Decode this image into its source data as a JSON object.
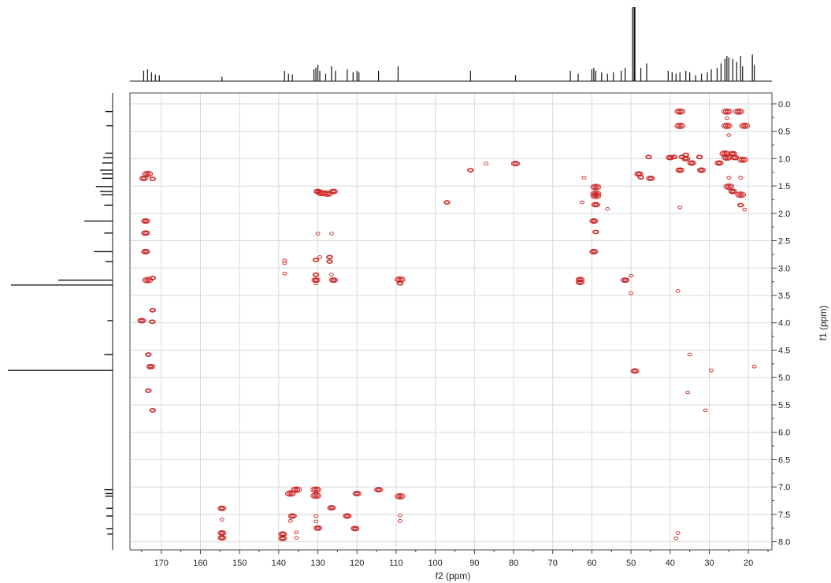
{
  "chart_data": {
    "type": "scatter",
    "subtype": "2d-nmr-contour",
    "title": "",
    "xlabel": "f2 (ppm)",
    "ylabel": "f1 (ppm)",
    "xlim": [
      178,
      14
    ],
    "ylim": [
      -0.2,
      8.15
    ],
    "x_reversed": true,
    "grid": true,
    "x_ticks": [
      170,
      160,
      150,
      140,
      130,
      120,
      110,
      100,
      90,
      80,
      70,
      60,
      50,
      40,
      30,
      20
    ],
    "y_ticks": [
      "0.0",
      "0.5",
      "1.0",
      "1.5",
      "2.0",
      "2.5",
      "3.0",
      "3.5",
      "4.0",
      "4.5",
      "5.0",
      "5.5",
      "6.0",
      "6.5",
      "7.0",
      "7.5",
      "8.0"
    ],
    "colors": {
      "contour": "#cc2222",
      "projection": "#111111",
      "grid": "#d9d9d9",
      "frame": "#444444"
    },
    "series": [
      {
        "values": [
          {
            "x": 173.5,
            "y": 1.28,
            "w": 3
          },
          {
            "x": 174.5,
            "y": 1.36,
            "w": 2
          },
          {
            "x": 172.2,
            "y": 1.37,
            "w": 1
          },
          {
            "x": 174.0,
            "y": 2.14,
            "w": 2
          },
          {
            "x": 174.0,
            "y": 2.36,
            "w": 2
          },
          {
            "x": 174.0,
            "y": 2.7,
            "w": 2
          },
          {
            "x": 173.5,
            "y": 3.22,
            "w": 3
          },
          {
            "x": 172.2,
            "y": 3.18,
            "w": 1
          },
          {
            "x": 172.2,
            "y": 3.77,
            "w": 1
          },
          {
            "x": 175.0,
            "y": 3.96,
            "w": 2
          },
          {
            "x": 172.3,
            "y": 3.98,
            "w": 1
          },
          {
            "x": 173.3,
            "y": 4.58,
            "w": 1
          },
          {
            "x": 172.7,
            "y": 4.8,
            "w": 2
          },
          {
            "x": 173.3,
            "y": 5.24,
            "w": 1
          },
          {
            "x": 172.2,
            "y": 5.6,
            "w": 1
          },
          {
            "x": 154.5,
            "y": 7.39,
            "w": 2
          },
          {
            "x": 154.5,
            "y": 7.84,
            "w": 2
          },
          {
            "x": 154.5,
            "y": 7.93,
            "w": 2
          },
          {
            "x": 154.5,
            "y": 7.6,
            "w": 0
          },
          {
            "x": 138.5,
            "y": 2.86,
            "w": 0
          },
          {
            "x": 138.5,
            "y": 2.91,
            "w": 0
          },
          {
            "x": 138.5,
            "y": 3.1,
            "w": 0
          },
          {
            "x": 130.0,
            "y": 1.6,
            "w": 2
          },
          {
            "x": 129.0,
            "y": 1.63,
            "w": 3
          },
          {
            "x": 127.5,
            "y": 1.64,
            "w": 3
          },
          {
            "x": 126.0,
            "y": 1.6,
            "w": 2
          },
          {
            "x": 130.0,
            "y": 2.37,
            "w": 0
          },
          {
            "x": 126.5,
            "y": 2.37,
            "w": 0
          },
          {
            "x": 130.5,
            "y": 2.85,
            "w": 1
          },
          {
            "x": 129.5,
            "y": 2.8,
            "w": 0
          },
          {
            "x": 127.0,
            "y": 2.8,
            "w": 1
          },
          {
            "x": 127.0,
            "y": 2.88,
            "w": 1
          },
          {
            "x": 130.5,
            "y": 3.12,
            "w": 1
          },
          {
            "x": 130.5,
            "y": 3.22,
            "w": 2
          },
          {
            "x": 130.5,
            "y": 3.28,
            "w": 0
          },
          {
            "x": 126.5,
            "y": 3.12,
            "w": 0
          },
          {
            "x": 126.0,
            "y": 3.22,
            "w": 2
          },
          {
            "x": 109.0,
            "y": 3.21,
            "w": 3
          },
          {
            "x": 109.0,
            "y": 3.28,
            "w": 1
          },
          {
            "x": 137.0,
            "y": 7.12,
            "w": 3
          },
          {
            "x": 135.5,
            "y": 7.05,
            "w": 3
          },
          {
            "x": 130.5,
            "y": 7.05,
            "w": 3
          },
          {
            "x": 130.5,
            "y": 7.16,
            "w": 3
          },
          {
            "x": 120.0,
            "y": 7.12,
            "w": 2
          },
          {
            "x": 114.5,
            "y": 7.05,
            "w": 2
          },
          {
            "x": 109.0,
            "y": 7.17,
            "w": 3
          },
          {
            "x": 136.5,
            "y": 7.53,
            "w": 2
          },
          {
            "x": 130.5,
            "y": 7.53,
            "w": 0
          },
          {
            "x": 130.5,
            "y": 7.63,
            "w": 0
          },
          {
            "x": 126.5,
            "y": 7.38,
            "w": 2
          },
          {
            "x": 122.5,
            "y": 7.53,
            "w": 2
          },
          {
            "x": 120.5,
            "y": 7.76,
            "w": 2
          },
          {
            "x": 130.0,
            "y": 7.75,
            "w": 2
          },
          {
            "x": 109.0,
            "y": 7.52,
            "w": 0
          },
          {
            "x": 109.0,
            "y": 7.62,
            "w": 0
          },
          {
            "x": 139.0,
            "y": 7.86,
            "w": 2
          },
          {
            "x": 139.0,
            "y": 7.94,
            "w": 2
          },
          {
            "x": 137.0,
            "y": 7.62,
            "w": 0
          },
          {
            "x": 135.5,
            "y": 7.83,
            "w": 0
          },
          {
            "x": 135.5,
            "y": 7.93,
            "w": 0
          },
          {
            "x": 91.0,
            "y": 1.21,
            "w": 1
          },
          {
            "x": 87.0,
            "y": 1.09,
            "w": 0
          },
          {
            "x": 79.5,
            "y": 1.09,
            "w": 2
          },
          {
            "x": 97.0,
            "y": 1.8,
            "w": 1
          },
          {
            "x": 62.0,
            "y": 1.35,
            "w": 0
          },
          {
            "x": 62.5,
            "y": 1.8,
            "w": 0
          },
          {
            "x": 59.0,
            "y": 1.52,
            "w": 3
          },
          {
            "x": 59.0,
            "y": 1.64,
            "w": 3
          },
          {
            "x": 59.0,
            "y": 1.68,
            "w": 3
          },
          {
            "x": 59.0,
            "y": 1.84,
            "w": 2
          },
          {
            "x": 59.5,
            "y": 2.14,
            "w": 2
          },
          {
            "x": 59.0,
            "y": 2.34,
            "w": 1
          },
          {
            "x": 59.5,
            "y": 2.7,
            "w": 2
          },
          {
            "x": 56.0,
            "y": 1.92,
            "w": 0
          },
          {
            "x": 63.0,
            "y": 3.21,
            "w": 2
          },
          {
            "x": 63.0,
            "y": 3.26,
            "w": 2
          },
          {
            "x": 51.5,
            "y": 3.22,
            "w": 2
          },
          {
            "x": 50.0,
            "y": 3.14,
            "w": 0
          },
          {
            "x": 50.0,
            "y": 3.46,
            "w": 0
          },
          {
            "x": 49.0,
            "y": 4.88,
            "w": 2
          },
          {
            "x": 48.0,
            "y": 1.28,
            "w": 2
          },
          {
            "x": 47.5,
            "y": 1.34,
            "w": 1
          },
          {
            "x": 45.0,
            "y": 1.36,
            "w": 2
          },
          {
            "x": 45.5,
            "y": 0.97,
            "w": 1
          },
          {
            "x": 40.0,
            "y": 0.98,
            "w": 2
          },
          {
            "x": 39.0,
            "y": 0.97,
            "w": 1
          },
          {
            "x": 37.5,
            "y": 0.14,
            "w": 3
          },
          {
            "x": 37.5,
            "y": 0.4,
            "w": 3
          },
          {
            "x": 37.0,
            "y": 0.97,
            "w": 1
          },
          {
            "x": 36.0,
            "y": 1.0,
            "w": 2
          },
          {
            "x": 36.0,
            "y": 0.93,
            "w": 1
          },
          {
            "x": 37.5,
            "y": 1.21,
            "w": 2
          },
          {
            "x": 34.5,
            "y": 1.08,
            "w": 2
          },
          {
            "x": 32.5,
            "y": 0.97,
            "w": 1
          },
          {
            "x": 32.0,
            "y": 1.21,
            "w": 2
          },
          {
            "x": 27.5,
            "y": 1.08,
            "w": 2
          },
          {
            "x": 37.5,
            "y": 1.89,
            "w": 0
          },
          {
            "x": 38.0,
            "y": 3.42,
            "w": 0
          },
          {
            "x": 38.0,
            "y": 7.84,
            "w": 0
          },
          {
            "x": 38.5,
            "y": 7.94,
            "w": 0
          },
          {
            "x": 35.0,
            "y": 4.58,
            "w": 0
          },
          {
            "x": 35.5,
            "y": 5.27,
            "w": 0
          },
          {
            "x": 31.0,
            "y": 5.6,
            "w": 0
          },
          {
            "x": 29.5,
            "y": 4.87,
            "w": 0
          },
          {
            "x": 18.5,
            "y": 4.8,
            "w": 0
          },
          {
            "x": 25.5,
            "y": 0.14,
            "w": 3
          },
          {
            "x": 22.5,
            "y": 0.14,
            "w": 3
          },
          {
            "x": 25.5,
            "y": 0.26,
            "w": 0
          },
          {
            "x": 25.5,
            "y": 0.4,
            "w": 3
          },
          {
            "x": 21.0,
            "y": 0.4,
            "w": 3
          },
          {
            "x": 25.0,
            "y": 0.57,
            "w": 0
          },
          {
            "x": 26.0,
            "y": 0.91,
            "w": 3
          },
          {
            "x": 24.0,
            "y": 0.91,
            "w": 2
          },
          {
            "x": 25.5,
            "y": 0.98,
            "w": 3
          },
          {
            "x": 23.5,
            "y": 0.98,
            "w": 2
          },
          {
            "x": 21.5,
            "y": 1.02,
            "w": 3
          },
          {
            "x": 25.0,
            "y": 1.35,
            "w": 0
          },
          {
            "x": 22.0,
            "y": 1.35,
            "w": 0
          },
          {
            "x": 25.0,
            "y": 1.51,
            "w": 3
          },
          {
            "x": 24.0,
            "y": 1.6,
            "w": 2
          },
          {
            "x": 22.0,
            "y": 1.66,
            "w": 3
          },
          {
            "x": 22.0,
            "y": 1.85,
            "w": 1
          },
          {
            "x": 21.0,
            "y": 1.93,
            "w": 0
          }
        ]
      }
    ],
    "projections": {
      "f2": [
        {
          "x": 174.5,
          "h": 0.14
        },
        {
          "x": 173.5,
          "h": 0.16
        },
        {
          "x": 172.5,
          "h": 0.12
        },
        {
          "x": 171.5,
          "h": 0.09
        },
        {
          "x": 170.5,
          "h": 0.08
        },
        {
          "x": 154.5,
          "h": 0.06
        },
        {
          "x": 138.5,
          "h": 0.14
        },
        {
          "x": 137.5,
          "h": 0.1
        },
        {
          "x": 136.5,
          "h": 0.09
        },
        {
          "x": 131.0,
          "h": 0.16
        },
        {
          "x": 130.5,
          "h": 0.18
        },
        {
          "x": 130.0,
          "h": 0.22
        },
        {
          "x": 129.5,
          "h": 0.14
        },
        {
          "x": 128.0,
          "h": 0.1
        },
        {
          "x": 126.5,
          "h": 0.2
        },
        {
          "x": 125.5,
          "h": 0.14
        },
        {
          "x": 122.5,
          "h": 0.16
        },
        {
          "x": 121.0,
          "h": 0.12
        },
        {
          "x": 120.0,
          "h": 0.14
        },
        {
          "x": 119.5,
          "h": 0.12
        },
        {
          "x": 114.5,
          "h": 0.14
        },
        {
          "x": 109.5,
          "h": 0.2
        },
        {
          "x": 91.0,
          "h": 0.14
        },
        {
          "x": 79.5,
          "h": 0.08
        },
        {
          "x": 65.5,
          "h": 0.14
        },
        {
          "x": 63.5,
          "h": 0.1
        },
        {
          "x": 60.0,
          "h": 0.16
        },
        {
          "x": 59.5,
          "h": 0.18
        },
        {
          "x": 59.0,
          "h": 0.14
        },
        {
          "x": 57.5,
          "h": 0.12
        },
        {
          "x": 56.0,
          "h": 0.1
        },
        {
          "x": 54.5,
          "h": 0.12
        },
        {
          "x": 52.5,
          "h": 0.14
        },
        {
          "x": 51.5,
          "h": 0.18
        },
        {
          "x": 49.6,
          "h": 1.0
        },
        {
          "x": 49.2,
          "h": 1.0
        },
        {
          "x": 49.0,
          "h": 1.0
        },
        {
          "x": 47.5,
          "h": 0.18
        },
        {
          "x": 46.0,
          "h": 0.24
        },
        {
          "x": 40.5,
          "h": 0.14
        },
        {
          "x": 39.5,
          "h": 0.12
        },
        {
          "x": 38.5,
          "h": 0.1
        },
        {
          "x": 37.5,
          "h": 0.12
        },
        {
          "x": 36.0,
          "h": 0.14
        },
        {
          "x": 35.0,
          "h": 0.12
        },
        {
          "x": 33.5,
          "h": 0.08
        },
        {
          "x": 32.0,
          "h": 0.1
        },
        {
          "x": 30.5,
          "h": 0.12
        },
        {
          "x": 29.5,
          "h": 0.16
        },
        {
          "x": 28.0,
          "h": 0.18
        },
        {
          "x": 27.0,
          "h": 0.24
        },
        {
          "x": 26.0,
          "h": 0.3
        },
        {
          "x": 25.5,
          "h": 0.34
        },
        {
          "x": 25.0,
          "h": 0.32
        },
        {
          "x": 24.0,
          "h": 0.3
        },
        {
          "x": 23.0,
          "h": 0.26
        },
        {
          "x": 22.0,
          "h": 0.34
        },
        {
          "x": 21.5,
          "h": 0.2
        },
        {
          "x": 19.0,
          "h": 0.36
        },
        {
          "x": 18.5,
          "h": 0.22
        }
      ],
      "f1": [
        {
          "y": 0.14,
          "h": 0.07
        },
        {
          "y": 0.4,
          "h": 0.06
        },
        {
          "y": 0.9,
          "h": 0.07
        },
        {
          "y": 0.98,
          "h": 0.09
        },
        {
          "y": 1.08,
          "h": 0.1
        },
        {
          "y": 1.21,
          "h": 0.12
        },
        {
          "y": 1.28,
          "h": 0.1
        },
        {
          "y": 1.36,
          "h": 0.1
        },
        {
          "y": 1.51,
          "h": 0.16
        },
        {
          "y": 1.6,
          "h": 0.12
        },
        {
          "y": 1.66,
          "h": 0.11
        },
        {
          "y": 1.85,
          "h": 0.08
        },
        {
          "y": 2.14,
          "h": 0.27
        },
        {
          "y": 2.36,
          "h": 0.08
        },
        {
          "y": 2.7,
          "h": 0.18
        },
        {
          "y": 2.88,
          "h": 0.07
        },
        {
          "y": 3.22,
          "h": 0.52
        },
        {
          "y": 3.31,
          "h": 0.97
        },
        {
          "y": 3.96,
          "h": 0.05
        },
        {
          "y": 4.58,
          "h": 0.08
        },
        {
          "y": 4.87,
          "h": 1.0
        },
        {
          "y": 7.05,
          "h": 0.08
        },
        {
          "y": 7.12,
          "h": 0.07
        },
        {
          "y": 7.17,
          "h": 0.07
        },
        {
          "y": 7.39,
          "h": 0.06
        },
        {
          "y": 7.53,
          "h": 0.06
        },
        {
          "y": 7.76,
          "h": 0.06
        },
        {
          "y": 7.86,
          "h": 0.05
        }
      ]
    }
  }
}
